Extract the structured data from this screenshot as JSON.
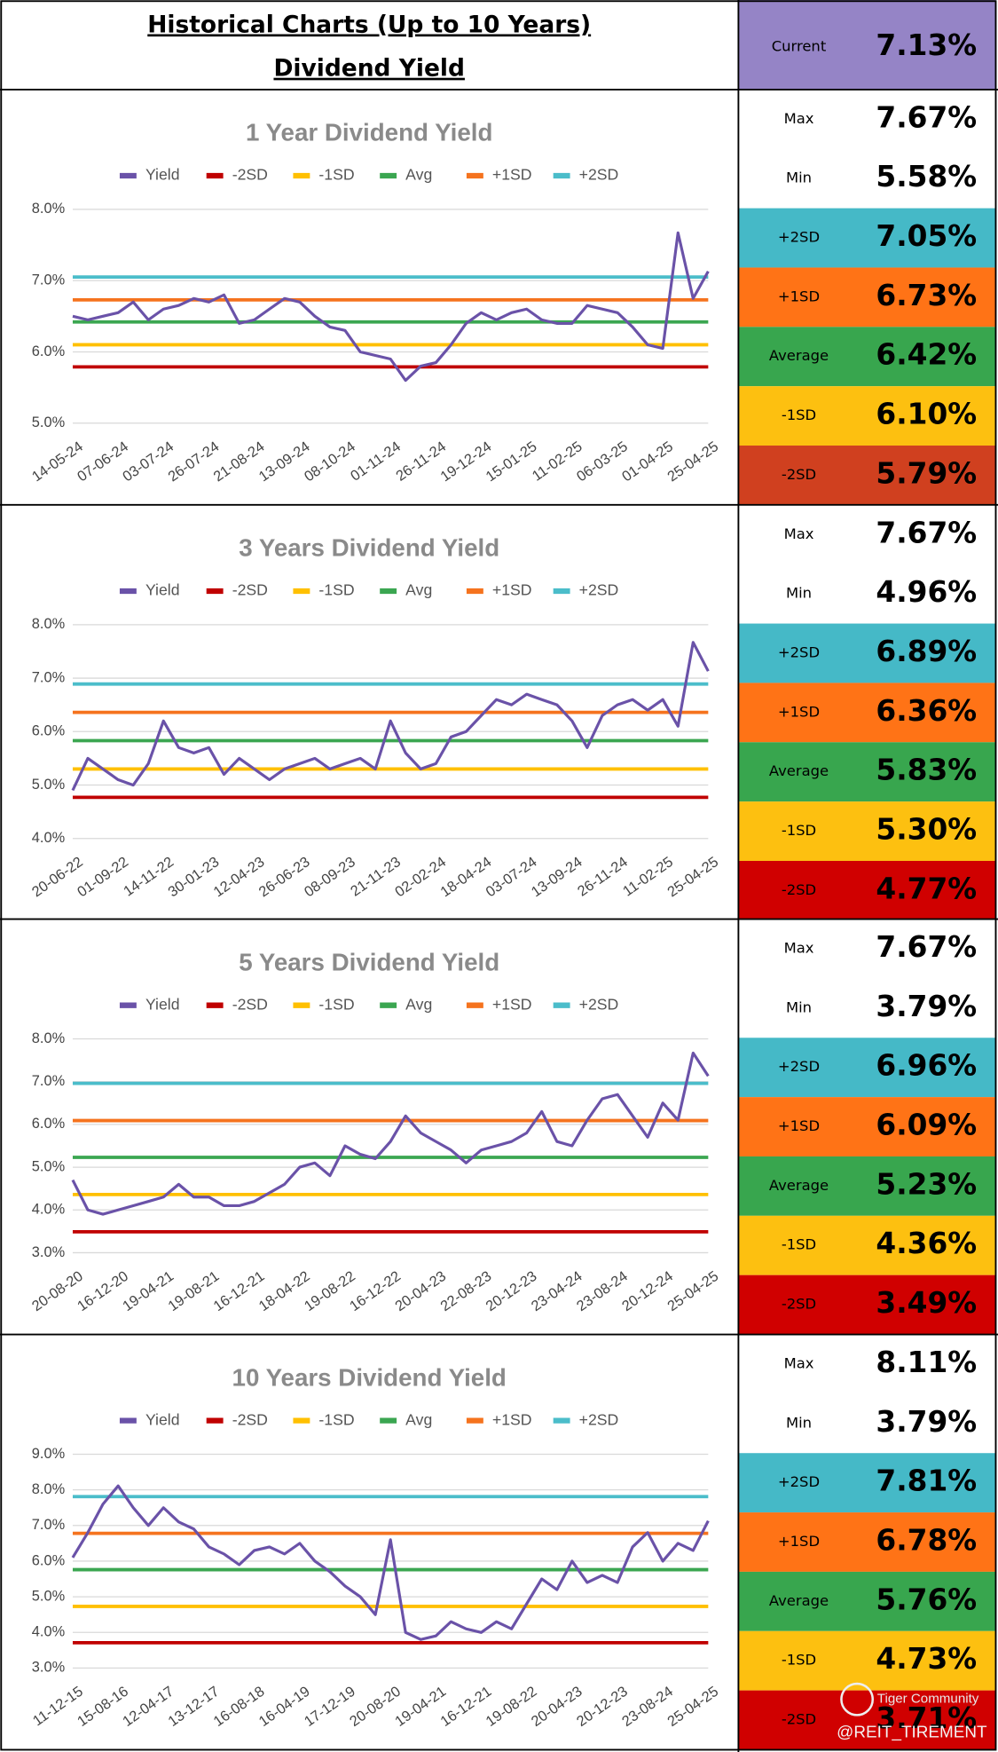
{
  "header": {
    "title": "Historical Charts (Up to 10 Years)",
    "subtitle": "Dividend Yield"
  },
  "current": {
    "label": "Current",
    "value": "7.13%"
  },
  "panels": [
    {
      "rows": [
        {
          "label": "Max",
          "value": "7.67%"
        },
        {
          "label": "Min",
          "value": "5.58%"
        },
        {
          "label": "+2SD",
          "value": "7.05%"
        },
        {
          "label": "+1SD",
          "value": "6.73%"
        },
        {
          "label": "Average",
          "value": "6.42%"
        },
        {
          "label": "-1SD",
          "value": "6.10%"
        },
        {
          "label": "-2SD",
          "value": "5.79%"
        }
      ]
    },
    {
      "rows": [
        {
          "label": "Max",
          "value": "7.67%"
        },
        {
          "label": "Min",
          "value": "4.96%"
        },
        {
          "label": "+2SD",
          "value": "6.89%"
        },
        {
          "label": "+1SD",
          "value": "6.36%"
        },
        {
          "label": "Average",
          "value": "5.83%"
        },
        {
          "label": "-1SD",
          "value": "5.30%"
        },
        {
          "label": "-2SD",
          "value": "4.77%"
        }
      ]
    },
    {
      "rows": [
        {
          "label": "Max",
          "value": "7.67%"
        },
        {
          "label": "Min",
          "value": "3.79%"
        },
        {
          "label": "+2SD",
          "value": "6.96%"
        },
        {
          "label": "+1SD",
          "value": "6.09%"
        },
        {
          "label": "Average",
          "value": "5.23%"
        },
        {
          "label": "-1SD",
          "value": "4.36%"
        },
        {
          "label": "-2SD",
          "value": "3.49%"
        }
      ]
    },
    {
      "rows": [
        {
          "label": "Max",
          "value": "8.11%"
        },
        {
          "label": "Min",
          "value": "3.79%"
        },
        {
          "label": "+2SD",
          "value": "7.81%"
        },
        {
          "label": "+1SD",
          "value": "6.78%"
        },
        {
          "label": "Average",
          "value": "5.76%"
        },
        {
          "label": "-1SD",
          "value": "4.73%"
        },
        {
          "label": "-2SD",
          "value": "3.71%"
        }
      ]
    }
  ],
  "watermark": {
    "brand": "Tiger Community",
    "handle": "@REIT_TIREMENT"
  },
  "chart_data": [
    {
      "type": "line",
      "title": "1 Year Dividend Yield",
      "categories": [
        "14-05-24",
        null,
        null,
        "07-06-24",
        null,
        null,
        "03-07-24",
        null,
        null,
        "26-07-24",
        null,
        null,
        "21-08-24",
        null,
        null,
        "13-09-24",
        null,
        null,
        "08-10-24",
        null,
        null,
        "01-11-24",
        null,
        null,
        "26-11-24",
        null,
        null,
        "19-12-24",
        null,
        null,
        "15-01-25",
        null,
        null,
        "11-02-25",
        null,
        null,
        "06-03-25",
        null,
        null,
        "01-04-25",
        null,
        null,
        "25-04-25"
      ],
      "ylim": [
        5,
        8
      ],
      "yticks": [
        {
          "value": 5,
          "label": "5.0%"
        },
        {
          "value": 6,
          "label": "6.0%"
        },
        {
          "value": 7,
          "label": "7.0%"
        },
        {
          "value": 8,
          "label": "8.0%"
        }
      ],
      "grid": true,
      "series": [
        {
          "name": "Yield",
          "color": "#6a52a8",
          "values": [
            6.5,
            6.45,
            6.5,
            6.55,
            6.7,
            6.45,
            6.6,
            6.65,
            6.75,
            6.7,
            6.8,
            6.4,
            6.45,
            6.6,
            6.75,
            6.7,
            6.5,
            6.35,
            6.3,
            6.0,
            5.95,
            5.9,
            5.6,
            5.8,
            5.85,
            6.1,
            6.4,
            6.55,
            6.45,
            6.55,
            6.6,
            6.45,
            6.4,
            6.4,
            6.65,
            6.6,
            6.55,
            6.35,
            6.1,
            6.05,
            7.67,
            6.75,
            7.13
          ]
        },
        {
          "name": "-2SD",
          "color": "#c00000",
          "value": 5.79
        },
        {
          "name": "-1SD",
          "color": "#ffc000",
          "value": 6.1
        },
        {
          "name": "Avg",
          "color": "#3ba651",
          "value": 6.42
        },
        {
          "name": "+1SD",
          "color": "#f5731e",
          "value": 6.73
        },
        {
          "name": "+2SD",
          "color": "#4bbdca",
          "value": 7.05
        }
      ]
    },
    {
      "type": "line",
      "title": "3 Years Dividend Yield",
      "categories": [
        "20-06-22",
        null,
        null,
        "01-09-22",
        null,
        null,
        "14-11-22",
        null,
        null,
        "30-01-23",
        null,
        null,
        "12-04-23",
        null,
        null,
        "26-06-23",
        null,
        null,
        "08-09-23",
        null,
        null,
        "21-11-23",
        null,
        null,
        "02-02-24",
        null,
        null,
        "18-04-24",
        null,
        null,
        "03-07-24",
        null,
        null,
        "13-09-24",
        null,
        null,
        "26-11-24",
        null,
        null,
        "11-02-25",
        null,
        null,
        "25-04-25"
      ],
      "ylim": [
        4,
        8
      ],
      "yticks": [
        {
          "value": 4,
          "label": "4.0%"
        },
        {
          "value": 5,
          "label": "5.0%"
        },
        {
          "value": 6,
          "label": "6.0%"
        },
        {
          "value": 7,
          "label": "7.0%"
        },
        {
          "value": 8,
          "label": "8.0%"
        }
      ],
      "grid": true,
      "series": [
        {
          "name": "Yield",
          "color": "#6a52a8",
          "values": [
            4.9,
            5.5,
            5.3,
            5.1,
            5.0,
            5.4,
            6.2,
            5.7,
            5.6,
            5.7,
            5.2,
            5.5,
            5.3,
            5.1,
            5.3,
            5.4,
            5.5,
            5.3,
            5.4,
            5.5,
            5.3,
            6.2,
            5.6,
            5.3,
            5.4,
            5.9,
            6.0,
            6.3,
            6.6,
            6.5,
            6.7,
            6.6,
            6.5,
            6.2,
            5.7,
            6.3,
            6.5,
            6.6,
            6.4,
            6.6,
            6.1,
            7.67,
            7.13
          ]
        },
        {
          "name": "-2SD",
          "color": "#c00000",
          "value": 4.77
        },
        {
          "name": "-1SD",
          "color": "#ffc000",
          "value": 5.3
        },
        {
          "name": "Avg",
          "color": "#3ba651",
          "value": 5.83
        },
        {
          "name": "+1SD",
          "color": "#f5731e",
          "value": 6.36
        },
        {
          "name": "+2SD",
          "color": "#4bbdca",
          "value": 6.89
        }
      ]
    },
    {
      "type": "line",
      "title": "5 Years Dividend Yield",
      "categories": [
        "20-08-20",
        null,
        null,
        "16-12-20",
        null,
        null,
        "19-04-21",
        null,
        null,
        "19-08-21",
        null,
        null,
        "16-12-21",
        null,
        null,
        "18-04-22",
        null,
        null,
        "19-08-22",
        null,
        null,
        "16-12-22",
        null,
        null,
        "20-04-23",
        null,
        null,
        "22-08-23",
        null,
        null,
        "20-12-23",
        null,
        null,
        "23-04-24",
        null,
        null,
        "23-08-24",
        null,
        null,
        "20-12-24",
        null,
        null,
        "25-04-25"
      ],
      "ylim": [
        3,
        8
      ],
      "yticks": [
        {
          "value": 3,
          "label": "3.0%"
        },
        {
          "value": 4,
          "label": "4.0%"
        },
        {
          "value": 5,
          "label": "5.0%"
        },
        {
          "value": 6,
          "label": "6.0%"
        },
        {
          "value": 7,
          "label": "7.0%"
        },
        {
          "value": 8,
          "label": "8.0%"
        }
      ],
      "grid": true,
      "series": [
        {
          "name": "Yield",
          "color": "#6a52a8",
          "values": [
            4.7,
            4.0,
            3.9,
            4.0,
            4.1,
            4.2,
            4.3,
            4.6,
            4.3,
            4.3,
            4.1,
            4.1,
            4.2,
            4.4,
            4.6,
            5.0,
            5.1,
            4.8,
            5.5,
            5.3,
            5.2,
            5.6,
            6.2,
            5.8,
            5.6,
            5.4,
            5.1,
            5.4,
            5.5,
            5.6,
            5.8,
            6.3,
            5.6,
            5.5,
            6.1,
            6.6,
            6.7,
            6.2,
            5.7,
            6.5,
            6.1,
            7.67,
            7.13
          ]
        },
        {
          "name": "-2SD",
          "color": "#c00000",
          "value": 3.49
        },
        {
          "name": "-1SD",
          "color": "#ffc000",
          "value": 4.36
        },
        {
          "name": "Avg",
          "color": "#3ba651",
          "value": 5.23
        },
        {
          "name": "+1SD",
          "color": "#f5731e",
          "value": 6.09
        },
        {
          "name": "+2SD",
          "color": "#4bbdca",
          "value": 6.96
        }
      ]
    },
    {
      "type": "line",
      "title": "10 Years Dividend Yield",
      "categories": [
        "11-12-15",
        null,
        null,
        "15-08-16",
        null,
        null,
        "12-04-17",
        null,
        null,
        "13-12-17",
        null,
        null,
        "16-08-18",
        null,
        null,
        "16-04-19",
        null,
        null,
        "17-12-19",
        null,
        null,
        "20-08-20",
        null,
        null,
        "19-04-21",
        null,
        null,
        "16-12-21",
        null,
        null,
        "19-08-22",
        null,
        null,
        "20-04-23",
        null,
        null,
        "20-12-23",
        null,
        null,
        "23-08-24",
        null,
        null,
        "25-04-25"
      ],
      "ylim": [
        3,
        9
      ],
      "yticks": [
        {
          "value": 3,
          "label": "3.0%"
        },
        {
          "value": 4,
          "label": "4.0%"
        },
        {
          "value": 5,
          "label": "5.0%"
        },
        {
          "value": 6,
          "label": "6.0%"
        },
        {
          "value": 7,
          "label": "7.0%"
        },
        {
          "value": 8,
          "label": "8.0%"
        },
        {
          "value": 9,
          "label": "9.0%"
        }
      ],
      "grid": true,
      "series": [
        {
          "name": "Yield",
          "color": "#6a52a8",
          "values": [
            6.1,
            6.8,
            7.6,
            8.11,
            7.5,
            7.0,
            7.5,
            7.1,
            6.9,
            6.4,
            6.2,
            5.9,
            6.3,
            6.4,
            6.2,
            6.5,
            6.0,
            5.7,
            5.3,
            5.0,
            4.5,
            6.6,
            4.0,
            3.8,
            3.9,
            4.3,
            4.1,
            4.0,
            4.3,
            4.1,
            4.8,
            5.5,
            5.2,
            6.0,
            5.4,
            5.6,
            5.4,
            6.4,
            6.8,
            6.0,
            6.5,
            6.3,
            7.13
          ]
        },
        {
          "name": "-2SD",
          "color": "#c00000",
          "value": 3.71
        },
        {
          "name": "-1SD",
          "color": "#ffc000",
          "value": 4.73
        },
        {
          "name": "Avg",
          "color": "#3ba651",
          "value": 5.76
        },
        {
          "name": "+1SD",
          "color": "#f5731e",
          "value": 6.78
        },
        {
          "name": "+2SD",
          "color": "#4bbdca",
          "value": 7.81
        }
      ]
    }
  ]
}
